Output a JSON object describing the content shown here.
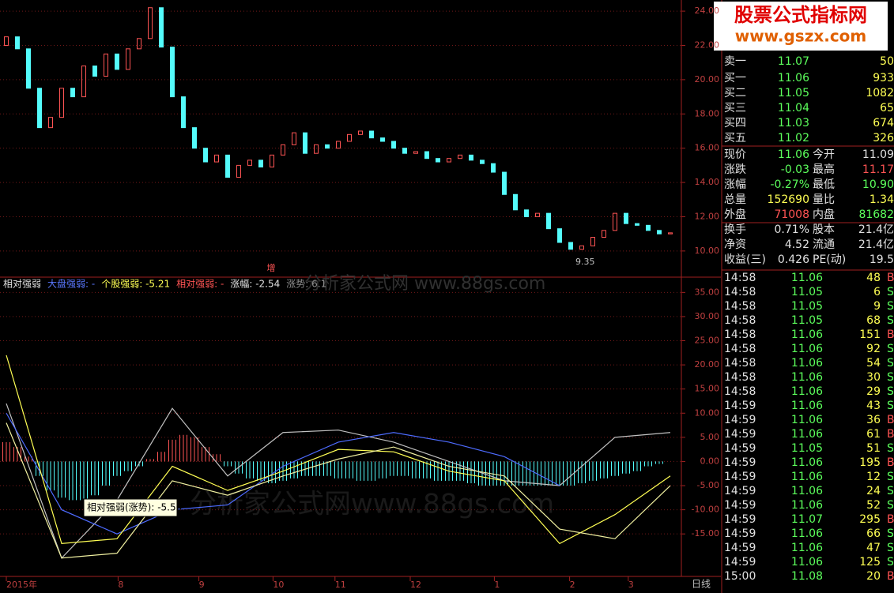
{
  "price_chart": {
    "type": "candlestick",
    "first_open": 22.0,
    "closes": [
      22.5,
      21.8,
      19.5,
      17.2,
      17.8,
      19.5,
      19.0,
      20.8,
      20.2,
      21.5,
      20.6,
      21.8,
      22.4,
      24.2,
      21.9,
      19.0,
      17.2,
      16.0,
      15.2,
      15.6,
      14.3,
      15.0,
      15.3,
      14.9,
      15.6,
      16.2,
      16.9,
      15.7,
      16.2,
      16.0,
      16.4,
      16.8,
      17.0,
      16.6,
      16.4,
      16.0,
      15.7,
      15.8,
      15.4,
      15.2,
      15.4,
      15.6,
      15.3,
      15.1,
      14.6,
      13.3,
      12.4,
      12.0,
      12.2,
      11.3,
      10.5,
      10.1,
      10.3,
      10.8,
      11.2,
      12.2,
      11.6,
      11.5,
      11.2,
      11.0,
      11.06
    ],
    "ylim": [
      8.98,
      24.65
    ],
    "yticks": [
      {
        "value": 10,
        "label": "10.00"
      },
      {
        "value": 12,
        "label": "12.00"
      },
      {
        "value": 14,
        "label": "14.00"
      },
      {
        "value": 16,
        "label": "16.00"
      },
      {
        "value": 18,
        "label": "18.00"
      },
      {
        "value": 20,
        "label": "20.00"
      },
      {
        "value": 22,
        "label": "22.00"
      },
      {
        "value": 24,
        "label": "24.00"
      }
    ],
    "up_color": "#ff5454",
    "down_color": "#54fcfc",
    "low_marker": 9.35,
    "tag": "增"
  },
  "indicator": {
    "type": "line",
    "header": [
      {
        "text": "相对强弱",
        "color": "#e0e0e0"
      },
      {
        "text": "大盘强弱: -",
        "color": "#5a78ff"
      },
      {
        "text": "个股强弱: -5.21",
        "color": "#ffff54"
      },
      {
        "text": "相对强弱: -",
        "color": "#ff5454"
      },
      {
        "text": "涨幅: -2.54",
        "color": "#e0e0e0"
      },
      {
        "text": "涨势: 6.1",
        "color": "#909090"
      }
    ],
    "ylim": [
      -23.8,
      38
    ],
    "yticks": [
      {
        "value": -15,
        "label": "-15.00"
      },
      {
        "value": -10,
        "label": "-10.00"
      },
      {
        "value": -5,
        "label": "-5.00"
      },
      {
        "value": 0,
        "label": "0.00"
      },
      {
        "value": 5,
        "label": "5.00"
      },
      {
        "value": 10,
        "label": "10.00"
      },
      {
        "value": 15,
        "label": "15.00"
      },
      {
        "value": 20,
        "label": "20.00"
      },
      {
        "value": 25,
        "label": "25.00"
      },
      {
        "value": 30,
        "label": "30.00"
      },
      {
        "value": 35,
        "label": "35.00"
      }
    ],
    "histogram": [
      4,
      3,
      1,
      -3,
      -6,
      -7.5,
      -8,
      -8,
      -7,
      -5,
      -3,
      -2,
      -1,
      0.5,
      2,
      4.5,
      5.5,
      5,
      3,
      1.5,
      -1,
      -2.5,
      -3.5,
      -4,
      -4.5,
      -4,
      -3.5,
      -3,
      -3,
      -3,
      -3.5,
      -3.5,
      -4,
      -4,
      -3.5,
      -3,
      -3,
      -3.5,
      -3.5,
      -4,
      -4,
      -4,
      -4.5,
      -5,
      -5,
      -5,
      -5,
      -5,
      -5,
      -5,
      -5,
      -5,
      -4.5,
      -4,
      -3.5,
      -3,
      -2.5,
      -2,
      -1,
      -0.5,
      null
    ],
    "line_x": [
      0,
      5,
      10,
      15,
      20,
      25,
      30,
      35,
      40,
      45,
      50,
      55,
      60
    ],
    "series": [
      {
        "color": "#c0c0c0",
        "values": [
          12,
          -20,
          -8,
          11,
          -3,
          6,
          6.5,
          4,
          0,
          -4,
          -5,
          5,
          6
        ]
      },
      {
        "color": "#4d6bff",
        "values": [
          10,
          -10,
          -15,
          -10,
          -9,
          -1,
          4,
          6,
          4,
          1,
          -5,
          null,
          null
        ]
      },
      {
        "color": "#ffff54",
        "values": [
          22,
          -17,
          -16,
          -1,
          -6,
          -2,
          2.5,
          2,
          -2,
          -4,
          -17,
          -11,
          -3
        ]
      },
      {
        "color": "#f0f0a0",
        "values": [
          8,
          -20,
          -19,
          -4,
          -7,
          -3,
          0.5,
          3,
          -1,
          -3,
          -14,
          -16,
          -5
        ]
      }
    ],
    "tooltip": "相对强弱(涨势): -5.50"
  },
  "xticks": [
    {
      "value": 0,
      "label": "2015年"
    },
    {
      "value": 10.1,
      "label": "8"
    },
    {
      "value": 17.4,
      "label": "9"
    },
    {
      "value": 24.1,
      "label": "10"
    },
    {
      "value": 29.7,
      "label": "11"
    },
    {
      "value": 36.5,
      "label": "12"
    },
    {
      "value": 44.1,
      "label": "1"
    },
    {
      "value": 50.9,
      "label": "2"
    },
    {
      "value": 56.2,
      "label": "3"
    }
  ],
  "period": "日线",
  "watermarks": [
    "分析家公式网 www.88gs.com",
    "分析家公式网www.88gs.com"
  ],
  "logo": {
    "title": "股票公式指标网",
    "url": "www.gszx.com"
  },
  "book": [
    [
      "卖一",
      "11.07",
      "50"
    ],
    [
      "买一",
      "11.06",
      "933"
    ],
    [
      "买二",
      "11.05",
      "1082"
    ],
    [
      "买三",
      "11.04",
      "65"
    ],
    [
      "买四",
      "11.03",
      "674"
    ],
    [
      "买五",
      "11.02",
      "326"
    ]
  ],
  "stats": [
    {
      "cells": [
        "现价",
        "11.06",
        "今开",
        "11.09"
      ],
      "colors": [
        "#5cff5c",
        "#e0e0e0"
      ]
    },
    {
      "cells": [
        "涨跌",
        "-0.03",
        "最高",
        "11.17"
      ],
      "colors": [
        "#5cff5c",
        "#ff5454"
      ]
    },
    {
      "cells": [
        "涨幅",
        "-0.27%",
        "最低",
        "10.90"
      ],
      "colors": [
        "#5cff5c",
        "#5cff5c"
      ]
    },
    {
      "cells": [
        "总量",
        "152690",
        "量比",
        "1.34"
      ],
      "colors": [
        "#ffff54",
        "#ffff54"
      ]
    },
    {
      "cells": [
        "外盘",
        "71008",
        "内盘",
        "81682"
      ],
      "colors": [
        "#ff5454",
        "#5cff5c"
      ]
    },
    {
      "cells": [
        "换手",
        "0.71%",
        "股本",
        "21.4亿"
      ],
      "colors": [
        "#e0e0e0",
        "#e0e0e0"
      ]
    },
    {
      "cells": [
        "净资",
        "4.52",
        "流通",
        "21.4亿"
      ],
      "colors": [
        "#e0e0e0",
        "#e0e0e0"
      ]
    },
    {
      "cells": [
        "收益(三)",
        "0.426",
        "PE(动)",
        "19.5"
      ],
      "colors": [
        "#e0e0e0",
        "#e0e0e0"
      ]
    }
  ],
  "trades": [
    [
      "14:58",
      "11.06",
      "48",
      "B"
    ],
    [
      "14:58",
      "11.05",
      "6",
      "S"
    ],
    [
      "14:58",
      "11.05",
      "9",
      "S"
    ],
    [
      "14:58",
      "11.05",
      "68",
      "S"
    ],
    [
      "14:58",
      "11.06",
      "151",
      "B"
    ],
    [
      "14:58",
      "11.06",
      "92",
      "S"
    ],
    [
      "14:58",
      "11.06",
      "54",
      "S"
    ],
    [
      "14:58",
      "11.06",
      "30",
      "S"
    ],
    [
      "14:58",
      "11.06",
      "29",
      "S"
    ],
    [
      "14:59",
      "11.06",
      "43",
      "S"
    ],
    [
      "14:59",
      "11.06",
      "36",
      "B"
    ],
    [
      "14:59",
      "11.06",
      "61",
      "B"
    ],
    [
      "14:59",
      "11.05",
      "51",
      "S"
    ],
    [
      "14:59",
      "11.06",
      "195",
      "B"
    ],
    [
      "14:59",
      "11.06",
      "12",
      "S"
    ],
    [
      "14:59",
      "11.06",
      "24",
      "S"
    ],
    [
      "14:59",
      "11.06",
      "52",
      "S"
    ],
    [
      "14:59",
      "11.07",
      "295",
      "B"
    ],
    [
      "14:59",
      "11.06",
      "66",
      "S"
    ],
    [
      "14:59",
      "11.06",
      "47",
      "S"
    ],
    [
      "14:59",
      "11.06",
      "125",
      "S"
    ],
    [
      "15:00",
      "11.08",
      "20",
      "B"
    ]
  ]
}
